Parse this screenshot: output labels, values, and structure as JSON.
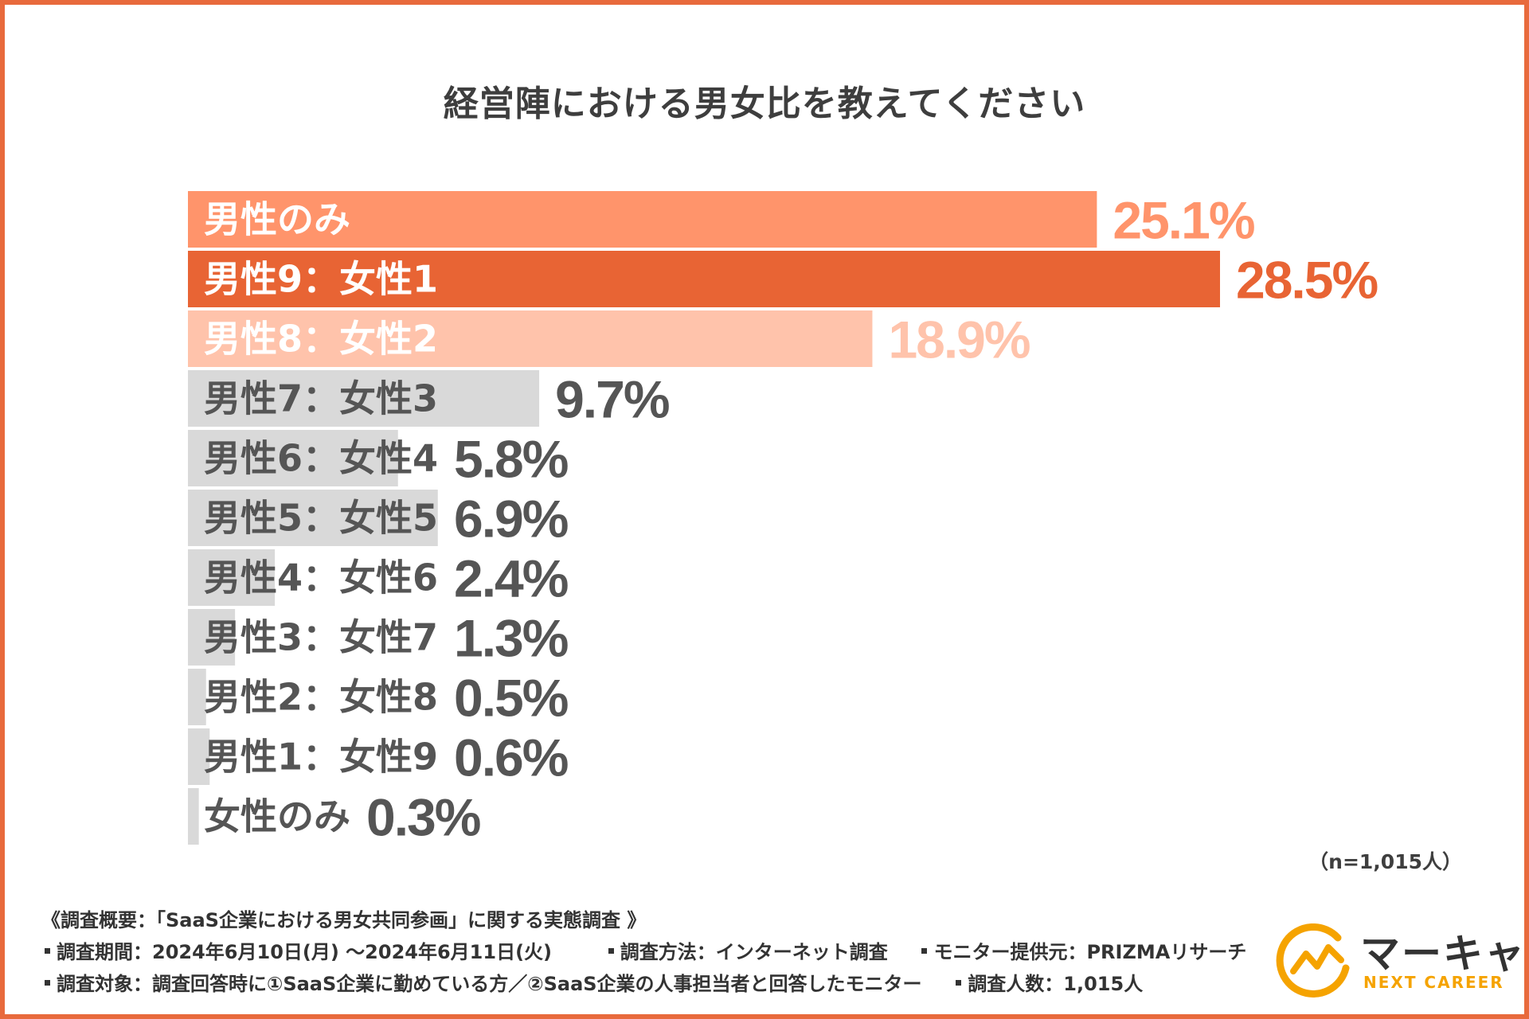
{
  "chart_data": {
    "type": "bar",
    "orientation": "horizontal",
    "title": "経営陣における男女比を教えてください",
    "categories": [
      "男性のみ",
      "男性9：女性1",
      "男性8：女性2",
      "男性7：女性3",
      "男性6：女性4",
      "男性5：女性5",
      "男性4：女性6",
      "男性3：女性7",
      "男性2：女性8",
      "男性1：女性9",
      "女性のみ"
    ],
    "values": [
      25.1,
      28.5,
      18.9,
      9.7,
      5.8,
      6.9,
      2.4,
      1.3,
      0.5,
      0.6,
      0.3
    ],
    "value_labels": [
      "25.1%",
      "28.5%",
      "18.9%",
      "9.7%",
      "5.8%",
      "6.9%",
      "2.4%",
      "1.3%",
      "0.5%",
      "0.6%",
      "0.3%"
    ],
    "unit": "%",
    "xlim": [
      0,
      28.5
    ],
    "colors": {
      "bars": [
        "#ff946b",
        "#e86434",
        "#ffc3ab",
        "#d9d9d9",
        "#d9d9d9",
        "#d9d9d9",
        "#d9d9d9",
        "#d9d9d9",
        "#d9d9d9",
        "#d9d9d9",
        "#d9d9d9"
      ],
      "labels": [
        "#ffffff",
        "#ffffff",
        "#ffffff",
        "#555555",
        "#555555",
        "#555555",
        "#555555",
        "#555555",
        "#555555",
        "#555555",
        "#555555"
      ],
      "values": [
        "#ff946b",
        "#e86434",
        "#ffc3ab",
        "#555555",
        "#555555",
        "#555555",
        "#555555",
        "#555555",
        "#555555",
        "#555555",
        "#555555"
      ]
    }
  },
  "sample_size": "（n=1,015人）",
  "survey": {
    "overview": "《調査概要：「SaaS企業における男女共同参画」に関する実態調査 》",
    "period": "調査期間：2024年6月10日(月) ～2024年6月11日(火)",
    "method": "調査方法：インターネット調査",
    "provider": "モニター提供元：PRIZMAリサーチ",
    "target": "調査対象：調査回答時に①SaaS企業に勤めている方／②SaaS企業の人事担当者と回答したモニター",
    "count": "調査人数：1,015人"
  },
  "logo": {
    "name_jp": "マーキャリ",
    "name_en": "NEXT CAREER",
    "color_accent": "#f5a300"
  }
}
